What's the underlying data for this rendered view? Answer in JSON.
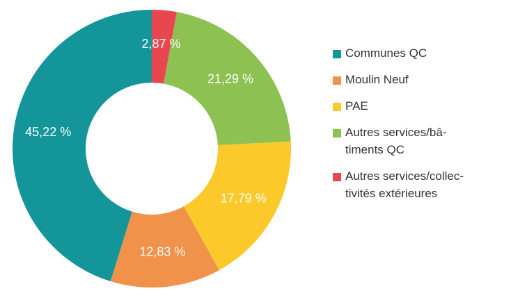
{
  "chart_data": {
    "type": "pie",
    "donut": true,
    "categories": [
      "Communes QC",
      "Moulin Neuf",
      "PAE",
      "Autres services/bâ-\ntiments QC",
      "Autres services/collec-\ntivités extérieures"
    ],
    "values": [
      45.22,
      12.83,
      17.79,
      21.29,
      2.87
    ],
    "value_labels": [
      "45,22 %",
      "12,83 %",
      "17,79 %",
      "21,29 %",
      "2,87 %"
    ],
    "colors": [
      "#13959a",
      "#f0924a",
      "#fcc92a",
      "#8dc152",
      "#e8474f"
    ],
    "legend": "right"
  }
}
